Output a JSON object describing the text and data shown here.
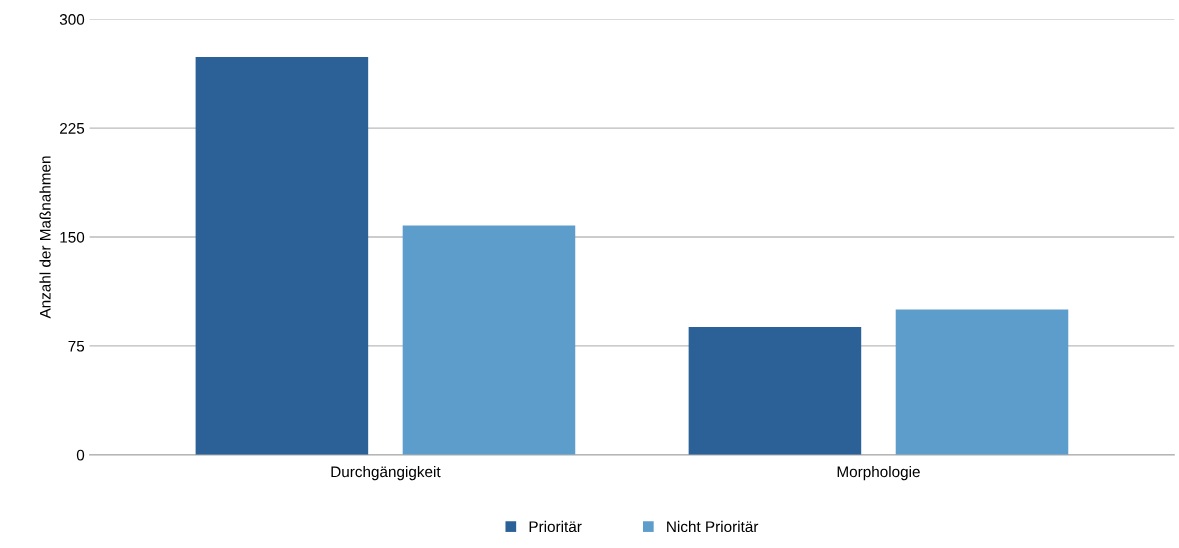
{
  "chart_data": {
    "type": "bar",
    "ylabel": "Anzahl der Maßnahmen",
    "categories": [
      "Durchgängigkeit",
      "Morphologie"
    ],
    "series": [
      {
        "name": "Prioritär",
        "color": "#2b6196",
        "values": [
          274,
          88
        ]
      },
      {
        "name": "Nicht Prioritär",
        "color": "#5d9dcb",
        "values": [
          158,
          100
        ]
      }
    ],
    "ylim": [
      0,
      300
    ],
    "yticks": [
      0,
      75,
      150,
      225,
      300
    ],
    "grid": "y",
    "legend": "bottom"
  }
}
